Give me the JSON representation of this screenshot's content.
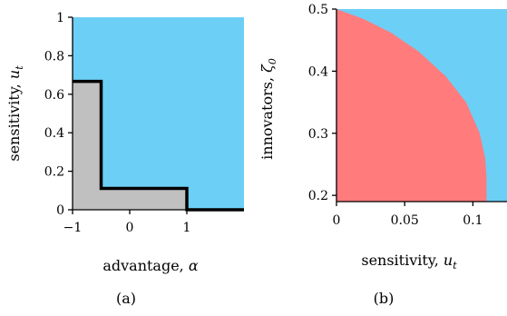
{
  "colors": {
    "blue_region": "#6ccff6",
    "red_region": "#ff7b7c",
    "gray_region": "#c0c0c0",
    "boundary": "#000000",
    "axis": "#000000"
  },
  "chart_data": [
    {
      "panel": "(a)",
      "type": "area",
      "xlabel_text": "advantage, ",
      "xlabel_symbol": "α",
      "ylabel_text": "sensitivity, ",
      "ylabel_symbol": "u",
      "ylabel_subscript": "t",
      "xlim": [
        -1,
        2
      ],
      "ylim": [
        0,
        1
      ],
      "x_ticks": [
        {
          "value": -1,
          "label": "−1"
        },
        {
          "value": 0,
          "label": "0"
        },
        {
          "value": 1,
          "label": "1"
        }
      ],
      "y_ticks": [
        {
          "value": 0,
          "label": "0"
        },
        {
          "value": 0.2,
          "label": "0.2"
        },
        {
          "value": 0.4,
          "label": "0.4"
        },
        {
          "value": 0.6,
          "label": "0.6"
        },
        {
          "value": 0.8,
          "label": "0.8"
        },
        {
          "value": 1,
          "label": "1"
        }
      ],
      "regions": [
        {
          "color_key": "blue_region",
          "description_region": "above boundary"
        },
        {
          "color_key": "gray_region",
          "description_region": "below boundary"
        }
      ],
      "boundary": {
        "x": [
          -1,
          -0.5,
          -0.5,
          1,
          1,
          2
        ],
        "y": [
          0.667,
          0.667,
          0.111,
          0.111,
          0,
          0
        ]
      }
    },
    {
      "panel": "(b)",
      "type": "area",
      "xlabel_text": "sensitivity, ",
      "xlabel_symbol": "u",
      "xlabel_subscript": "t",
      "ylabel_text": "innovators, ",
      "ylabel_symbol": "ζ",
      "ylabel_subscript": "0",
      "xlim": [
        0,
        0.125
      ],
      "ylim": [
        0.19,
        0.5
      ],
      "x_ticks": [
        {
          "value": 0,
          "label": "0"
        },
        {
          "value": 0.05,
          "label": "0.05"
        },
        {
          "value": 0.1,
          "label": "0.1"
        }
      ],
      "y_ticks": [
        {
          "value": 0.2,
          "label": "0.2"
        },
        {
          "value": 0.3,
          "label": "0.3"
        },
        {
          "value": 0.4,
          "label": "0.4"
        },
        {
          "value": 0.5,
          "label": "0.5"
        }
      ],
      "regions": [
        {
          "color_key": "blue_region",
          "description_region": "outside boundary"
        },
        {
          "color_key": "red_region",
          "description_region": "inside boundary"
        }
      ],
      "boundary": {
        "x": [
          0,
          0.02,
          0.04,
          0.06,
          0.08,
          0.095,
          0.105,
          0.109,
          0.11,
          0.11
        ],
        "y": [
          0.5,
          0.484,
          0.462,
          0.432,
          0.392,
          0.35,
          0.3,
          0.26,
          0.23,
          0.19
        ]
      }
    }
  ]
}
